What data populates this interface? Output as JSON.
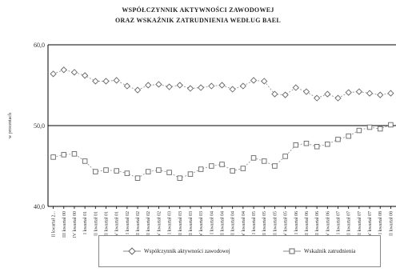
{
  "chart_data": {
    "type": "line",
    "title": "WSPÓŁCZYNNIK AKTYWNOŚCI ZAWODOWEJ",
    "subtitle": "ORAZ WSKAŹNIK ZATRUDNIENIA WEDŁUG BAEL",
    "ylabel": "w procentach",
    "xlabel": "",
    "ylim": [
      40,
      60
    ],
    "yticks": [
      "40,0",
      "50,0",
      "60,0"
    ],
    "grid": true,
    "legend_position": "bottom",
    "categories": [
      "II kwartał 2...",
      "III kwartał 00",
      "IV kwartał 00",
      "I kwartał 01",
      "II kwartał 01",
      "III kwartał 01",
      "IV kwartał 01",
      "I kwartał 02",
      "II kwartał 02",
      "III kwartał 02",
      "IV kwartał 02",
      "I kwartał 03",
      "II kwartał 03",
      "III kwartał 03",
      "IV kwartał 03",
      "I kwartał 04",
      "II kwartał 04",
      "III kwartał 04",
      "IV kwartał 04",
      "I kwartał 05",
      "II kwartał 05",
      "III kwartał 05",
      "IV kwartał 05",
      "I kwartał 06",
      "II kwartał 06",
      "III kwartał 06",
      "IV kwartał 06",
      "I kwartał 07",
      "II kwartał 07",
      "III kwartał 07",
      "IV kwartał 07",
      "I kwartał 08",
      "II kwartał 08"
    ],
    "series": [
      {
        "name": "Współczynnik aktywności zawodowej",
        "color": "#888888",
        "marker": "diamond",
        "values": [
          56.4,
          56.9,
          56.6,
          56.2,
          55.5,
          55.5,
          55.6,
          54.9,
          54.4,
          55.0,
          55.1,
          54.8,
          55.0,
          54.6,
          54.7,
          54.9,
          55.0,
          54.5,
          54.9,
          55.6,
          55.5,
          53.9,
          53.8,
          54.7,
          54.2,
          53.4,
          53.9,
          53.4,
          54.1,
          54.2,
          54.0,
          53.8,
          54.0
        ]
      },
      {
        "name": "Wskaźnik zatrudnienia",
        "color": "#888888",
        "marker": "square",
        "values": [
          46.1,
          46.4,
          46.5,
          45.6,
          44.3,
          44.5,
          44.4,
          44.1,
          43.5,
          44.3,
          44.5,
          44.2,
          43.5,
          44.0,
          44.6,
          45.0,
          45.2,
          44.4,
          44.7,
          46.0,
          45.6,
          45.0,
          46.2,
          47.6,
          47.8,
          47.4,
          47.7,
          48.3,
          48.7,
          49.4,
          49.8,
          49.6,
          50.1
        ]
      }
    ]
  }
}
